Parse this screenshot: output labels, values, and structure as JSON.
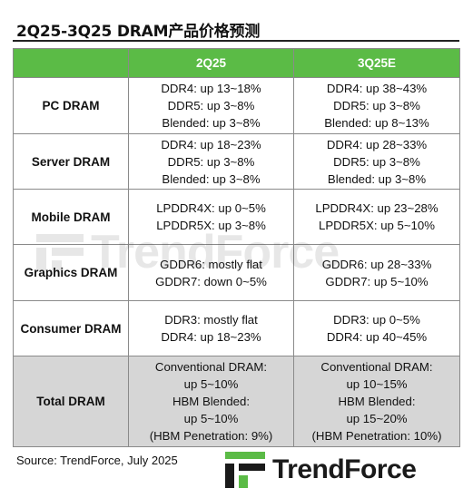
{
  "title": "2Q25-3Q25 DRAM产品价格预测",
  "header": {
    "col1": "",
    "col2": "2Q25",
    "col3": "3Q25E"
  },
  "rows": [
    {
      "label": "PC DRAM",
      "q2": [
        "DDR4: up 13~18%",
        "DDR5: up 3~8%",
        "Blended: up 3~8%"
      ],
      "q3": [
        "DDR4: up 38~43%",
        "DDR5: up 3~8%",
        "Blended: up 8~13%"
      ]
    },
    {
      "label": "Server DRAM",
      "q2": [
        "DDR4: up 18~23%",
        "DDR5: up 3~8%",
        "Blended: up 3~8%"
      ],
      "q3": [
        "DDR4: up 28~33%",
        "DDR5: up 3~8%",
        "Blended: up 3~8%"
      ]
    },
    {
      "label": "Mobile DRAM",
      "q2": [
        "LPDDR4X: up 0~5%",
        "LPDDR5X: up 3~8%"
      ],
      "q3": [
        "LPDDR4X: up 23~28%",
        "LPDDR5X: up 5~10%"
      ]
    },
    {
      "label": "Graphics DRAM",
      "q2": [
        "GDDR6: mostly flat",
        "GDDR7: down 0~5%"
      ],
      "q3": [
        "GDDR6: up 28~33%",
        "GDDR7: up 5~10%"
      ]
    },
    {
      "label": "Consumer DRAM",
      "q2": [
        "DDR3: mostly flat",
        "DDR4: up 18~23%"
      ],
      "q3": [
        "DDR3: up 0~5%",
        "DDR4: up 40~45%"
      ]
    },
    {
      "label": "Total DRAM",
      "q2": [
        "Conventional DRAM:",
        "up 5~10%",
        "HBM Blended:",
        "up 5~10%",
        "(HBM Penetration: 9%)"
      ],
      "q3": [
        "Conventional DRAM:",
        "up 10~15%",
        "HBM Blended:",
        "up 15~20%",
        "(HBM Penetration: 10%)"
      ]
    }
  ],
  "source": "Source: TrendForce, July 2025",
  "brand": {
    "name": "TrendForce",
    "watermark": "TrendForce",
    "green": "#5bbb46",
    "dark": "#1a1a1a"
  }
}
